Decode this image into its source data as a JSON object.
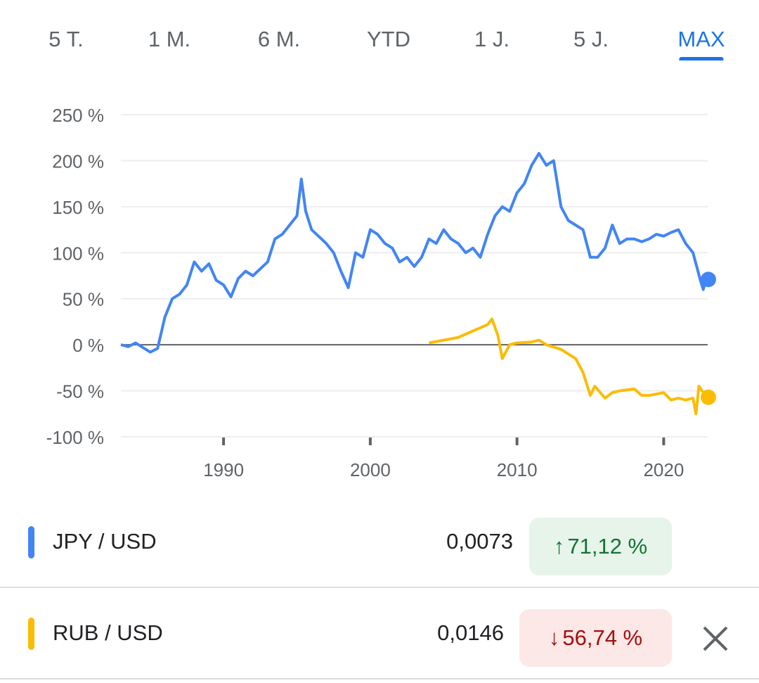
{
  "tabs": [
    "5 T.",
    "1 M.",
    "6 M.",
    "YTD",
    "1 J.",
    "5 J.",
    "MAX"
  ],
  "active_tab": "MAX",
  "chart_data": {
    "type": "line",
    "ylabel": "",
    "xlabel": "",
    "yticks": [
      "250 %",
      "200 %",
      "150 %",
      "100 %",
      "50 %",
      "0 %",
      "-50 %",
      "-100 %"
    ],
    "ytick_values": [
      250,
      200,
      150,
      100,
      50,
      0,
      -50,
      -100
    ],
    "xticks": [
      "1990",
      "2000",
      "2010",
      "2020"
    ],
    "xtick_values": [
      1990,
      2000,
      2010,
      2020
    ],
    "xlim": [
      1983,
      2023
    ],
    "ylim": [
      -100,
      250
    ],
    "series": [
      {
        "name": "JPY / USD",
        "color": "#4285f4",
        "points": [
          [
            1983,
            0
          ],
          [
            1983.5,
            -2
          ],
          [
            1984,
            2
          ],
          [
            1984.5,
            -3
          ],
          [
            1985,
            -8
          ],
          [
            1985.5,
            -4
          ],
          [
            1986,
            30
          ],
          [
            1986.5,
            50
          ],
          [
            1987,
            55
          ],
          [
            1987.5,
            65
          ],
          [
            1988,
            90
          ],
          [
            1988.5,
            80
          ],
          [
            1989,
            88
          ],
          [
            1989.5,
            70
          ],
          [
            1990,
            65
          ],
          [
            1990.5,
            52
          ],
          [
            1991,
            72
          ],
          [
            1991.5,
            80
          ],
          [
            1992,
            75
          ],
          [
            1993,
            90
          ],
          [
            1993.5,
            115
          ],
          [
            1994,
            120
          ],
          [
            1994.5,
            130
          ],
          [
            1995,
            140
          ],
          [
            1995.3,
            180
          ],
          [
            1995.6,
            145
          ],
          [
            1996,
            125
          ],
          [
            1997,
            110
          ],
          [
            1997.5,
            100
          ],
          [
            1998,
            80
          ],
          [
            1998.5,
            62
          ],
          [
            1999,
            100
          ],
          [
            1999.5,
            95
          ],
          [
            2000,
            125
          ],
          [
            2000.5,
            120
          ],
          [
            2001,
            110
          ],
          [
            2001.5,
            105
          ],
          [
            2002,
            90
          ],
          [
            2002.5,
            95
          ],
          [
            2003,
            85
          ],
          [
            2003.5,
            95
          ],
          [
            2004,
            115
          ],
          [
            2004.5,
            110
          ],
          [
            2005,
            125
          ],
          [
            2005.5,
            115
          ],
          [
            2006,
            110
          ],
          [
            2006.5,
            100
          ],
          [
            2007,
            105
          ],
          [
            2007.5,
            95
          ],
          [
            2008,
            120
          ],
          [
            2008.5,
            140
          ],
          [
            2009,
            150
          ],
          [
            2009.5,
            145
          ],
          [
            2010,
            165
          ],
          [
            2010.5,
            175
          ],
          [
            2011,
            195
          ],
          [
            2011.5,
            208
          ],
          [
            2012,
            195
          ],
          [
            2012.5,
            200
          ],
          [
            2013,
            150
          ],
          [
            2013.5,
            135
          ],
          [
            2014,
            130
          ],
          [
            2014.5,
            125
          ],
          [
            2015,
            95
          ],
          [
            2015.5,
            95
          ],
          [
            2016,
            105
          ],
          [
            2016.5,
            130
          ],
          [
            2017,
            110
          ],
          [
            2017.5,
            115
          ],
          [
            2018,
            115
          ],
          [
            2018.5,
            112
          ],
          [
            2019,
            115
          ],
          [
            2019.5,
            120
          ],
          [
            2020,
            118
          ],
          [
            2020.5,
            122
          ],
          [
            2021,
            125
          ],
          [
            2021.5,
            110
          ],
          [
            2022,
            100
          ],
          [
            2022.5,
            70
          ],
          [
            2022.7,
            60
          ],
          [
            2022.9,
            71
          ]
        ]
      },
      {
        "name": "RUB / USD",
        "color": "#fbbc04",
        "points": [
          [
            2004,
            2
          ],
          [
            2005,
            5
          ],
          [
            2006,
            8
          ],
          [
            2007,
            15
          ],
          [
            2008,
            22
          ],
          [
            2008.3,
            28
          ],
          [
            2008.7,
            10
          ],
          [
            2009,
            -15
          ],
          [
            2009.5,
            0
          ],
          [
            2010,
            2
          ],
          [
            2011,
            3
          ],
          [
            2011.5,
            5
          ],
          [
            2012,
            0
          ],
          [
            2013,
            -5
          ],
          [
            2014,
            -15
          ],
          [
            2014.5,
            -30
          ],
          [
            2015,
            -55
          ],
          [
            2015.3,
            -45
          ],
          [
            2016,
            -58
          ],
          [
            2016.5,
            -52
          ],
          [
            2017,
            -50
          ],
          [
            2018,
            -48
          ],
          [
            2018.5,
            -55
          ],
          [
            2019,
            -55
          ],
          [
            2020,
            -52
          ],
          [
            2020.5,
            -60
          ],
          [
            2021,
            -58
          ],
          [
            2021.5,
            -60
          ],
          [
            2022,
            -58
          ],
          [
            2022.2,
            -75
          ],
          [
            2022.4,
            -45
          ],
          [
            2022.9,
            -57
          ]
        ]
      }
    ]
  },
  "legend": [
    {
      "pair": "JPY / USD",
      "value": "0,0073",
      "change": "71,12 %",
      "direction": "up",
      "color": "#4285f4"
    },
    {
      "pair": "RUB / USD",
      "value": "0,0146",
      "change": "56,74 %",
      "direction": "down",
      "color": "#fbbc04"
    }
  ]
}
